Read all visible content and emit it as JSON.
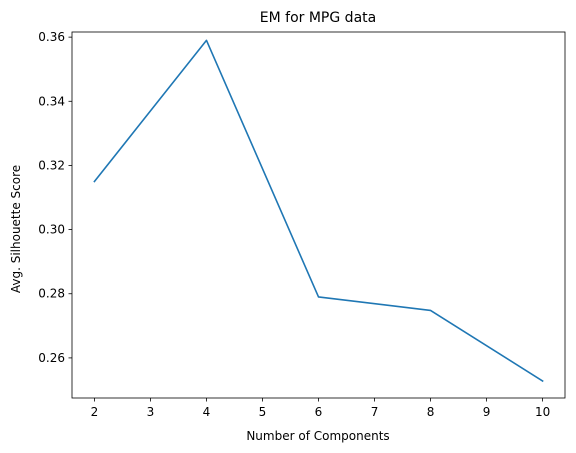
{
  "chart_data": {
    "type": "line",
    "title": "EM for MPG data",
    "xlabel": "Number of Components",
    "ylabel": "Avg. Silhouette Score",
    "xlim": [
      1.6,
      10.4
    ],
    "ylim": [
      0.2475,
      0.3616
    ],
    "xticks": [
      2,
      3,
      4,
      5,
      6,
      7,
      8,
      9,
      10
    ],
    "yticks": [
      0.26,
      0.28,
      0.3,
      0.32,
      0.34,
      0.36
    ],
    "ytick_labels": [
      "0.26",
      "0.28",
      "0.30",
      "0.32",
      "0.34",
      "0.36"
    ],
    "grid": false,
    "series": [
      {
        "color": "#1f77b4",
        "x": [
          2,
          4,
          6,
          8,
          10
        ],
        "y": [
          0.315,
          0.359,
          0.279,
          0.2748,
          0.2528
        ]
      }
    ]
  }
}
